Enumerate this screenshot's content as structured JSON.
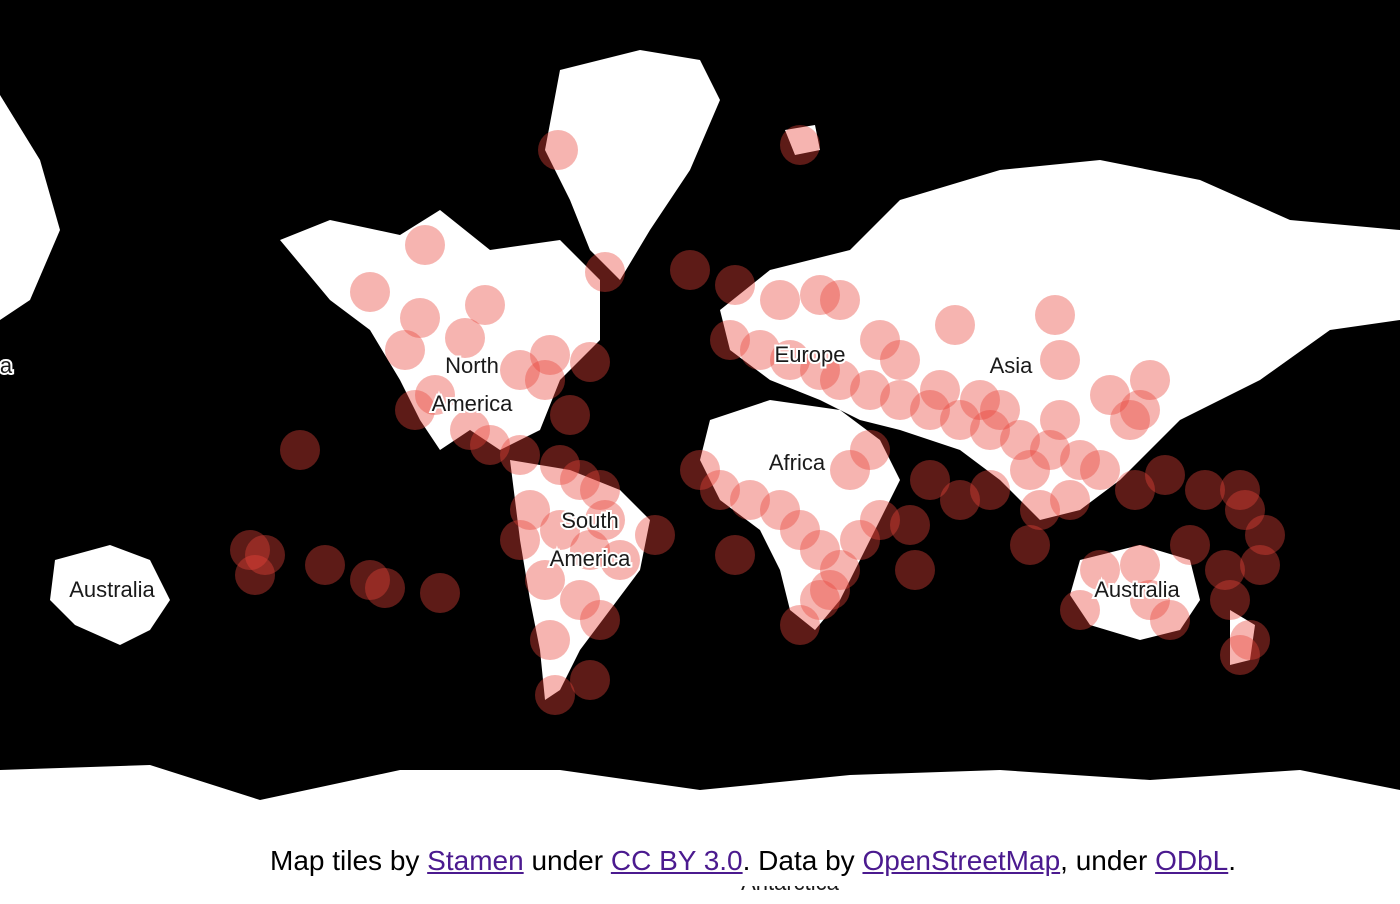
{
  "map": {
    "continent_labels": [
      {
        "id": "north-america",
        "text": "North\nAmerica"
      },
      {
        "id": "south-america",
        "text": "South\nAmerica"
      },
      {
        "id": "africa",
        "text": "Africa"
      },
      {
        "id": "asia",
        "text": "Asia"
      },
      {
        "id": "australia-left",
        "text": "Australia"
      },
      {
        "id": "australia-right",
        "text": "Australia"
      },
      {
        "id": "europe",
        "text": "Europe"
      },
      {
        "id": "asia-edge",
        "text": "a"
      },
      {
        "id": "antarctica",
        "text": "Antarctica"
      }
    ],
    "marker_color": "#e8433a",
    "land_color": "#ffffff",
    "ocean_color": "#000000"
  },
  "attribution": {
    "t1": "Map tiles by ",
    "link1": "Stamen",
    "t2": " under ",
    "link2": "CC BY 3.0",
    "t3": ". Data by ",
    "link3": "OpenStreetMap",
    "t4": ", under ",
    "link4": "ODbL",
    "t5": "."
  }
}
